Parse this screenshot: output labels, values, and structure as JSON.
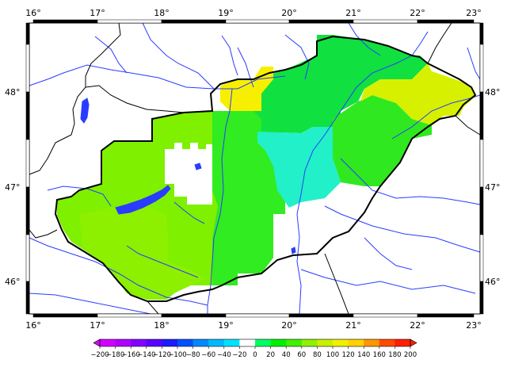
{
  "map": {
    "lon_ticks": [
      "16°",
      "17°",
      "18°",
      "19°",
      "20°",
      "21°",
      "22°",
      "23°"
    ],
    "lat_ticks": [
      "48°",
      "47°",
      "46°"
    ]
  },
  "colorbar": {
    "labels": [
      "−200",
      "−180",
      "−160",
      "−140",
      "−120",
      "−100",
      "−80",
      "−60",
      "−40",
      "−20",
      "0",
      "20",
      "40",
      "60",
      "80",
      "100",
      "120",
      "140",
      "160",
      "180",
      "200"
    ],
    "colors": [
      "#d400ff",
      "#b000ff",
      "#8400ff",
      "#5a00ff",
      "#1c1cff",
      "#0050ff",
      "#0088ff",
      "#00b8ff",
      "#00e0ff",
      "#ffffff",
      "#ffffff",
      "#00ff60",
      "#00f000",
      "#40f000",
      "#90f000",
      "#c8f000",
      "#f0f000",
      "#ffd200",
      "#ff9600",
      "#ff4a00",
      "#ff1e00"
    ]
  },
  "colors": {
    "lake": "#2a3cff",
    "river": "#2a3cff",
    "border": "#000000",
    "frame": "#000000"
  }
}
